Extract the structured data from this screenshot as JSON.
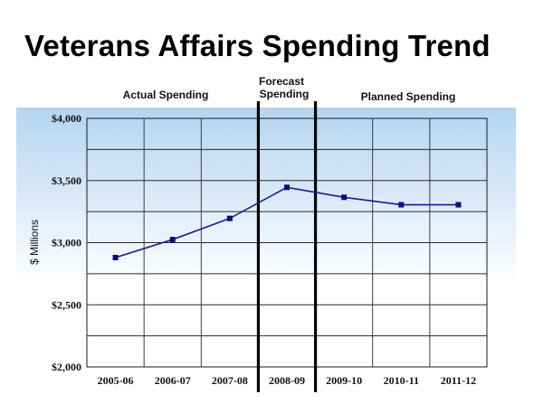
{
  "chart_data": {
    "type": "line",
    "title": "Veterans Affairs Spending Trend",
    "ylabel": "$ Millions",
    "xlabel": "",
    "categories": [
      "2005-06",
      "2006-07",
      "2007-08",
      "2008-09",
      "2009-10",
      "2010-11",
      "2011-12"
    ],
    "series": [
      {
        "values": [
          2880,
          3025,
          3195,
          3445,
          3365,
          3305,
          3305
        ]
      }
    ],
    "ylim": [
      2000,
      4000
    ],
    "yticks": [
      2000,
      2500,
      3000,
      3500,
      4000
    ],
    "ytick_labels": [
      "$2,000",
      "$2,500",
      "$3,000",
      "$3,500",
      "$4,000"
    ],
    "grid": true,
    "sections": [
      {
        "label": "Actual Spending"
      },
      {
        "label": "Forecast Spending",
        "lines": [
          "Forecast",
          "Spending"
        ]
      },
      {
        "label": "Planned Spending"
      }
    ],
    "colors": {
      "line": "#1c1c8c",
      "marker": "#0c0c7a",
      "plot_top": "#b4d4f0",
      "plot_bottom": "#ffffff"
    }
  }
}
